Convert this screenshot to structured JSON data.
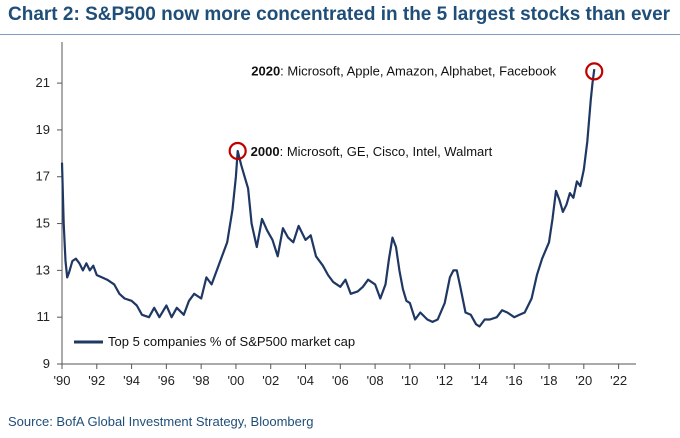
{
  "title": "Chart 2: S&P500 now more concentrated in the 5 largest stocks than ever",
  "source": "Source: BofA Global Investment Strategy, Bloomberg",
  "colors": {
    "line": "#1f3763",
    "title": "#1f4e79",
    "circle": "#c00000"
  },
  "chart_data": {
    "type": "line",
    "title": "Chart 2: S&P500 now more concentrated in the 5 largest stocks than ever",
    "xlabel": "",
    "ylabel": "",
    "xlim": [
      1990,
      2023
    ],
    "ylim": [
      9,
      22.5
    ],
    "x_ticks": [
      1990,
      1992,
      1994,
      1996,
      1998,
      2000,
      2002,
      2004,
      2006,
      2008,
      2010,
      2012,
      2014,
      2016,
      2018,
      2020,
      2022
    ],
    "x_tick_labels": [
      "'90",
      "'92",
      "'94",
      "'96",
      "'98",
      "'00",
      "'02",
      "'04",
      "'06",
      "'08",
      "'10",
      "'12",
      "'14",
      "'16",
      "'18",
      "'20",
      "'22"
    ],
    "y_ticks": [
      9,
      11,
      13,
      15,
      17,
      19,
      21
    ],
    "y_tick_labels": [
      "9",
      "11",
      "13",
      "15",
      "17",
      "19",
      "21"
    ],
    "grid": false,
    "legend": {
      "position": "bottom-left",
      "entries": [
        "Top 5 companies % of S&P500 market cap"
      ]
    },
    "series": [
      {
        "name": "Top 5 companies % of S&P500 market cap",
        "x": [
          1990.0,
          1990.1,
          1990.2,
          1990.3,
          1990.4,
          1990.6,
          1990.8,
          1991.0,
          1991.2,
          1991.4,
          1991.6,
          1991.8,
          1992.0,
          1992.3,
          1992.6,
          1993.0,
          1993.3,
          1993.6,
          1994.0,
          1994.3,
          1994.6,
          1995.0,
          1995.3,
          1995.6,
          1996.0,
          1996.3,
          1996.6,
          1997.0,
          1997.3,
          1997.6,
          1998.0,
          1998.3,
          1998.6,
          1998.9,
          1999.2,
          1999.5,
          1999.8,
          2000.0,
          2000.1,
          2000.3,
          2000.5,
          2000.7,
          2000.9,
          2001.2,
          2001.5,
          2001.8,
          2002.1,
          2002.4,
          2002.7,
          2003.0,
          2003.3,
          2003.6,
          2004.0,
          2004.3,
          2004.6,
          2005.0,
          2005.3,
          2005.6,
          2006.0,
          2006.3,
          2006.6,
          2007.0,
          2007.3,
          2007.6,
          2008.0,
          2008.3,
          2008.6,
          2008.8,
          2009.0,
          2009.2,
          2009.4,
          2009.6,
          2009.8,
          2010.0,
          2010.3,
          2010.6,
          2011.0,
          2011.3,
          2011.6,
          2012.0,
          2012.3,
          2012.5,
          2012.7,
          2012.9,
          2013.2,
          2013.5,
          2013.8,
          2014.0,
          2014.3,
          2014.6,
          2015.0,
          2015.3,
          2015.6,
          2016.0,
          2016.3,
          2016.6,
          2017.0,
          2017.3,
          2017.6,
          2018.0,
          2018.2,
          2018.4,
          2018.6,
          2018.8,
          2019.0,
          2019.2,
          2019.4,
          2019.6,
          2019.8,
          2020.0,
          2020.2,
          2020.4,
          2020.5,
          2020.6
        ],
        "y": [
          17.6,
          15.0,
          13.4,
          12.7,
          12.9,
          13.4,
          13.5,
          13.3,
          13.0,
          13.3,
          13.0,
          13.2,
          12.8,
          12.7,
          12.6,
          12.4,
          12.0,
          11.8,
          11.7,
          11.5,
          11.1,
          11.0,
          11.4,
          11.0,
          11.5,
          11.0,
          11.4,
          11.1,
          11.7,
          12.0,
          11.8,
          12.7,
          12.4,
          13.0,
          13.6,
          14.2,
          15.6,
          17.0,
          18.1,
          17.5,
          17.0,
          16.5,
          15.0,
          14.0,
          15.2,
          14.7,
          14.3,
          13.6,
          14.8,
          14.4,
          14.2,
          14.9,
          14.3,
          14.5,
          13.6,
          13.2,
          12.8,
          12.5,
          12.3,
          12.6,
          12.0,
          12.1,
          12.3,
          12.6,
          12.4,
          11.8,
          12.4,
          13.5,
          14.4,
          14.0,
          13.0,
          12.2,
          11.7,
          11.6,
          10.9,
          11.2,
          10.9,
          10.8,
          10.9,
          11.6,
          12.7,
          13.0,
          13.0,
          12.3,
          11.2,
          11.1,
          10.7,
          10.6,
          10.9,
          10.9,
          11.0,
          11.3,
          11.2,
          11.0,
          11.1,
          11.2,
          11.8,
          12.8,
          13.5,
          14.2,
          15.2,
          16.4,
          16.0,
          15.5,
          15.8,
          16.3,
          16.1,
          16.8,
          16.6,
          17.3,
          18.5,
          20.3,
          21.0,
          21.6
        ]
      }
    ],
    "annotations": [
      {
        "year_label": "2000",
        "text": ": Microsoft, GE, Cisco, Intel, Walmart",
        "x": 2000.1,
        "y": 18.1
      },
      {
        "year_label": "2020",
        "text": ": Microsoft, Apple, Amazon, Alphabet, Facebook",
        "x": 2020.6,
        "y": 21.5
      }
    ]
  }
}
